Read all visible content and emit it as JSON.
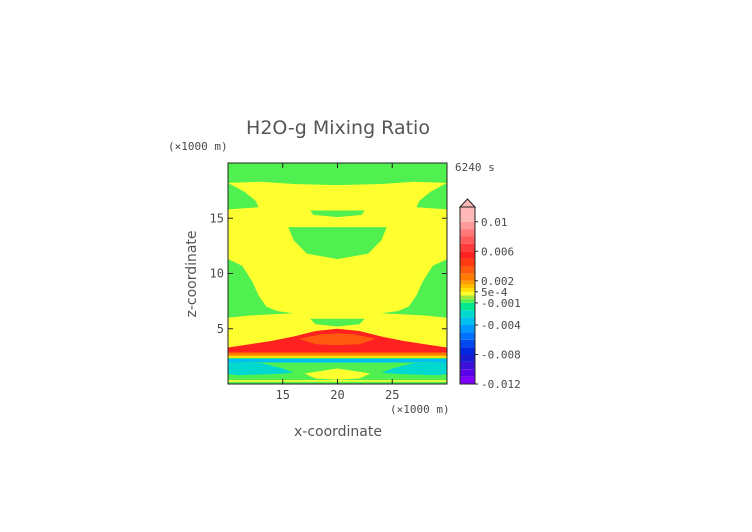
{
  "chart_data": {
    "type": "heatmap",
    "title": "H2O-g Mixing Ratio",
    "xlabel": "x-coordinate",
    "ylabel": "z-coordinate",
    "x_unit": "(×1000 m)",
    "y_unit": "(×1000 m)",
    "time_label": "6240 s",
    "xlim": [
      10,
      30
    ],
    "ylim": [
      0,
      20
    ],
    "x_ticks": [
      "15",
      "20",
      "25"
    ],
    "y_ticks": [
      "5",
      "10",
      "15"
    ],
    "colorbar": {
      "tick_labels": [
        "0.01",
        "0.006",
        "0.002",
        "5e-4",
        "-0.001",
        "-0.004",
        "-0.008",
        "-0.012"
      ],
      "tick_values": [
        0.01,
        0.006,
        0.002,
        0.0005,
        -0.001,
        -0.004,
        -0.008,
        -0.012
      ],
      "range": [
        -0.012,
        0.012
      ],
      "levels": [
        {
          "min": -0.012,
          "max": -0.011,
          "color": "#7f00ff"
        },
        {
          "min": -0.011,
          "max": -0.01,
          "color": "#5a00e6"
        },
        {
          "min": -0.01,
          "max": -0.009,
          "color": "#3b10d8"
        },
        {
          "min": -0.009,
          "max": -0.008,
          "color": "#1a1ad0"
        },
        {
          "min": -0.008,
          "max": -0.007,
          "color": "#0028e0"
        },
        {
          "min": -0.007,
          "max": -0.006,
          "color": "#0048f0"
        },
        {
          "min": -0.006,
          "max": -0.005,
          "color": "#0070ff"
        },
        {
          "min": -0.005,
          "max": -0.004,
          "color": "#0098ff"
        },
        {
          "min": -0.004,
          "max": -0.003,
          "color": "#00c0f0"
        },
        {
          "min": -0.003,
          "max": -0.002,
          "color": "#00d8d0"
        },
        {
          "min": -0.002,
          "max": -0.001,
          "color": "#00e890"
        },
        {
          "min": -0.001,
          "max": -0.0005,
          "color": "#50f050"
        },
        {
          "min": -0.0005,
          "max": 0.0,
          "color": "#a0e840"
        },
        {
          "min": 0.0,
          "max": 0.0005,
          "color": "#ffff30"
        },
        {
          "min": 0.0005,
          "max": 0.001,
          "color": "#ffe000"
        },
        {
          "min": 0.001,
          "max": 0.0015,
          "color": "#ffc000"
        },
        {
          "min": 0.0015,
          "max": 0.002,
          "color": "#ff9c00"
        },
        {
          "min": 0.002,
          "max": 0.003,
          "color": "#ff7a00"
        },
        {
          "min": 0.003,
          "max": 0.004,
          "color": "#ff5a10"
        },
        {
          "min": 0.004,
          "max": 0.005,
          "color": "#ff3c10"
        },
        {
          "min": 0.005,
          "max": 0.006,
          "color": "#ff2020"
        },
        {
          "min": 0.006,
          "max": 0.007,
          "color": "#ff3a3a"
        },
        {
          "min": 0.007,
          "max": 0.008,
          "color": "#ff5a5a"
        },
        {
          "min": 0.008,
          "max": 0.009,
          "color": "#ff7878"
        },
        {
          "min": 0.009,
          "max": 0.01,
          "color": "#ff9a9a"
        },
        {
          "min": 0.01,
          "max": 0.012,
          "color": "#ffb8b8"
        }
      ]
    },
    "regions": [
      {
        "desc": "background",
        "value": 0.0003,
        "polygon": [
          [
            10,
            0
          ],
          [
            30,
            0
          ],
          [
            30,
            20
          ],
          [
            10,
            20
          ]
        ]
      },
      {
        "desc": "top band",
        "value": -0.0007,
        "polygon": [
          [
            10,
            18.2
          ],
          [
            13,
            18.3
          ],
          [
            16,
            18.1
          ],
          [
            20,
            18.0
          ],
          [
            24,
            18.1
          ],
          [
            27,
            18.3
          ],
          [
            30,
            18.2
          ],
          [
            30,
            20
          ],
          [
            10,
            20
          ]
        ]
      },
      {
        "desc": "upper left blob",
        "value": -0.0007,
        "polygon": [
          [
            10,
            18.2
          ],
          [
            11.5,
            17.4
          ],
          [
            12.5,
            16.6
          ],
          [
            12.8,
            16.0
          ],
          [
            10,
            15.8
          ]
        ]
      },
      {
        "desc": "upper right blob",
        "value": -0.0007,
        "polygon": [
          [
            30,
            18.2
          ],
          [
            28.5,
            17.4
          ],
          [
            27.5,
            16.6
          ],
          [
            27.2,
            16.0
          ],
          [
            30,
            15.8
          ]
        ]
      },
      {
        "desc": "central upper blob",
        "value": -0.0007,
        "polygon": [
          [
            15.5,
            14.2
          ],
          [
            24.5,
            14.2
          ],
          [
            24,
            13.0
          ],
          [
            22.8,
            11.8
          ],
          [
            20,
            11.3
          ],
          [
            17.2,
            11.8
          ],
          [
            16,
            13.0
          ]
        ]
      },
      {
        "desc": "thin strip",
        "value": -0.0007,
        "polygon": [
          [
            17.5,
            15.7
          ],
          [
            22.5,
            15.7
          ],
          [
            22.2,
            15.3
          ],
          [
            20,
            15.1
          ],
          [
            17.8,
            15.3
          ]
        ]
      },
      {
        "desc": "left middle lobe",
        "value": -0.0007,
        "polygon": [
          [
            10,
            11.3
          ],
          [
            11.3,
            10.7
          ],
          [
            12.2,
            9.3
          ],
          [
            12.8,
            8.0
          ],
          [
            13.5,
            7.0
          ],
          [
            14.5,
            6.6
          ],
          [
            16,
            6.4
          ],
          [
            12,
            6.2
          ],
          [
            10,
            6.0
          ]
        ]
      },
      {
        "desc": "right middle lobe",
        "value": -0.0007,
        "polygon": [
          [
            30,
            11.3
          ],
          [
            28.7,
            10.7
          ],
          [
            27.8,
            9.3
          ],
          [
            27.2,
            8.0
          ],
          [
            26.5,
            7.0
          ],
          [
            25.5,
            6.6
          ],
          [
            24,
            6.4
          ],
          [
            28,
            6.2
          ],
          [
            30,
            6.0
          ]
        ]
      },
      {
        "desc": "small strip",
        "value": -0.0007,
        "polygon": [
          [
            17.5,
            5.9
          ],
          [
            22.5,
            5.9
          ],
          [
            22,
            5.4
          ],
          [
            20,
            5.2
          ],
          [
            18,
            5.4
          ]
        ]
      },
      {
        "desc": "red dome",
        "value": 0.0055,
        "polygon": [
          [
            10,
            3.3
          ],
          [
            12,
            3.6
          ],
          [
            14,
            3.9
          ],
          [
            16,
            4.3
          ],
          [
            18,
            4.8
          ],
          [
            20,
            5.0
          ],
          [
            22,
            4.8
          ],
          [
            24,
            4.3
          ],
          [
            26,
            3.9
          ],
          [
            28,
            3.6
          ],
          [
            30,
            3.3
          ],
          [
            30,
            2.6
          ],
          [
            10,
            2.6
          ]
        ]
      },
      {
        "desc": "orange core",
        "value": 0.0035,
        "polygon": [
          [
            16.5,
            4.1
          ],
          [
            18.5,
            4.5
          ],
          [
            20,
            4.6
          ],
          [
            21.5,
            4.5
          ],
          [
            23.5,
            4.1
          ],
          [
            22,
            3.6
          ],
          [
            20,
            3.5
          ],
          [
            18,
            3.6
          ]
        ]
      },
      {
        "desc": "orange lower band",
        "value": 0.0025,
        "polygon": [
          [
            10,
            2.85
          ],
          [
            30,
            2.85
          ],
          [
            30,
            2.55
          ],
          [
            10,
            2.55
          ]
        ]
      },
      {
        "desc": "thin yellow line",
        "value": 0.0008,
        "polygon": [
          [
            10,
            2.55
          ],
          [
            30,
            2.55
          ],
          [
            30,
            2.35
          ],
          [
            10,
            2.35
          ]
        ]
      },
      {
        "desc": "green lower band",
        "value": -0.0007,
        "polygon": [
          [
            10,
            2.35
          ],
          [
            30,
            2.35
          ],
          [
            30,
            0
          ],
          [
            10,
            0
          ]
        ]
      },
      {
        "desc": "blue layer",
        "value": -0.0035,
        "polygon": [
          [
            10,
            2.3
          ],
          [
            30,
            2.3
          ],
          [
            30,
            1.95
          ],
          [
            10,
            1.95
          ]
        ]
      },
      {
        "desc": "cyan left",
        "value": -0.0025,
        "polygon": [
          [
            10,
            1.95
          ],
          [
            13,
            1.9
          ],
          [
            15,
            1.4
          ],
          [
            16,
            1.0
          ],
          [
            14,
            0.9
          ],
          [
            11,
            0.8
          ],
          [
            10,
            0.9
          ]
        ]
      },
      {
        "desc": "cyan right",
        "value": -0.0025,
        "polygon": [
          [
            30,
            1.95
          ],
          [
            27,
            1.9
          ],
          [
            25,
            1.4
          ],
          [
            24,
            1.0
          ],
          [
            26,
            0.9
          ],
          [
            29,
            0.8
          ],
          [
            30,
            0.9
          ]
        ]
      },
      {
        "desc": "yellow bottom center",
        "value": 0.0003,
        "polygon": [
          [
            17,
            0.95
          ],
          [
            20,
            1.4
          ],
          [
            23,
            0.95
          ],
          [
            22,
            0.5
          ],
          [
            20,
            0.4
          ],
          [
            18,
            0.5
          ]
        ]
      },
      {
        "desc": "thin yellow bottom",
        "value": 0.0003,
        "polygon": [
          [
            10,
            0.35
          ],
          [
            30,
            0.35
          ],
          [
            30,
            0.2
          ],
          [
            10,
            0.2
          ]
        ]
      }
    ]
  }
}
